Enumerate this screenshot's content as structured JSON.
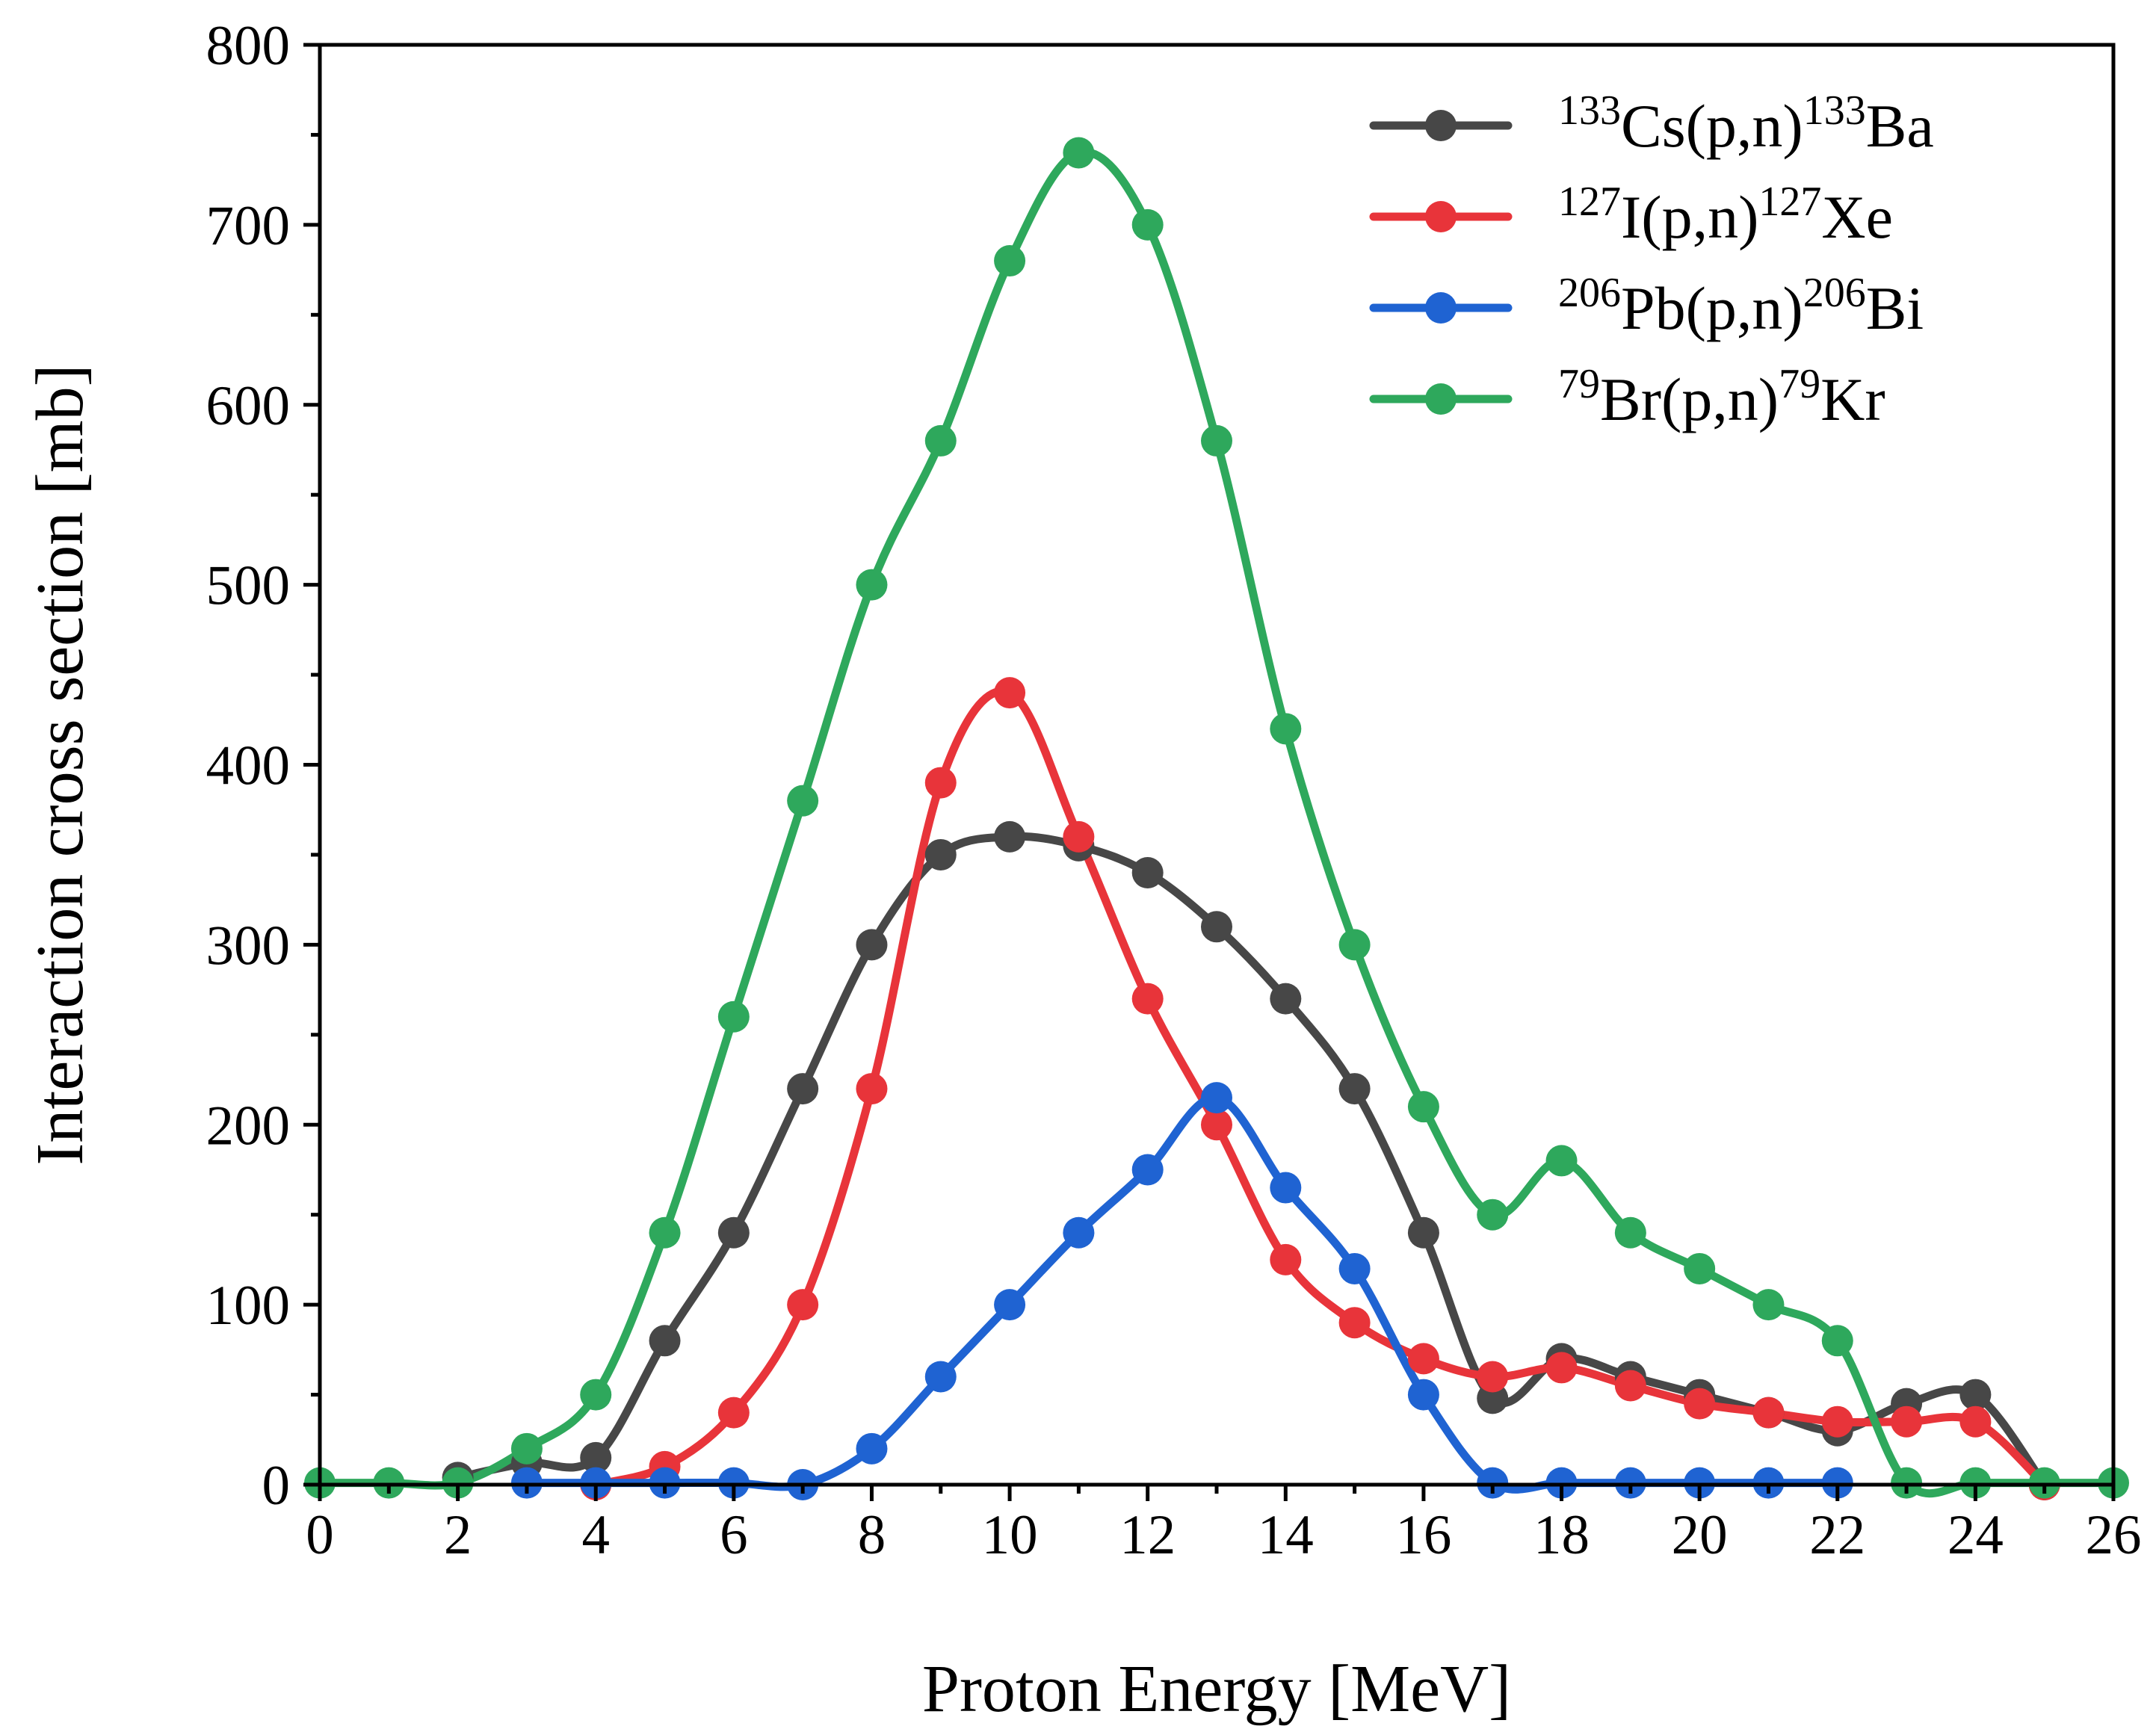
{
  "chart_data": {
    "type": "line",
    "title": "",
    "xlabel": "Proton Energy [MeV]",
    "ylabel": "Interaction cross section [mb]",
    "xlim": [
      0,
      26
    ],
    "ylim": [
      0,
      800
    ],
    "x_ticks": [
      "0",
      "2",
      "4",
      "6",
      "8",
      "10",
      "12",
      "14",
      "16",
      "18",
      "20",
      "22",
      "24",
      "26"
    ],
    "y_ticks": [
      "0",
      "100",
      "200",
      "300",
      "400",
      "500",
      "600",
      "700",
      "800"
    ],
    "grid": false,
    "legend_position": "top-right",
    "series": [
      {
        "name": "133Cs(p,n)133Ba",
        "color": "#474747",
        "label_parts": [
          {
            "sup": "133"
          },
          {
            "text": "Cs(p,n)"
          },
          {
            "sup": "133"
          },
          {
            "text": "Ba"
          }
        ],
        "points": [
          [
            2,
            4
          ],
          [
            3,
            12
          ],
          [
            4,
            15
          ],
          [
            5,
            80
          ],
          [
            6,
            140
          ],
          [
            7,
            220
          ],
          [
            8,
            300
          ],
          [
            9,
            350
          ],
          [
            10,
            360
          ],
          [
            11,
            355
          ],
          [
            12,
            340
          ],
          [
            13,
            310
          ],
          [
            14,
            270
          ],
          [
            15,
            220
          ],
          [
            16,
            140
          ],
          [
            17,
            48
          ],
          [
            18,
            70
          ],
          [
            19,
            60
          ],
          [
            20,
            50
          ],
          [
            21,
            40
          ],
          [
            22,
            30
          ],
          [
            23,
            45
          ],
          [
            24,
            50
          ],
          [
            25,
            0
          ]
        ]
      },
      {
        "name": "127I(p,n)127Xe",
        "color": "#e8343a",
        "label_parts": [
          {
            "sup": "127"
          },
          {
            "text": "I(p,n)"
          },
          {
            "sup": "127"
          },
          {
            "text": "Xe"
          }
        ],
        "points": [
          [
            4,
            0
          ],
          [
            5,
            10
          ],
          [
            6,
            40
          ],
          [
            7,
            100
          ],
          [
            8,
            220
          ],
          [
            9,
            390
          ],
          [
            10,
            440
          ],
          [
            11,
            360
          ],
          [
            12,
            270
          ],
          [
            13,
            200
          ],
          [
            14,
            125
          ],
          [
            15,
            90
          ],
          [
            16,
            70
          ],
          [
            17,
            60
          ],
          [
            18,
            65
          ],
          [
            19,
            55
          ],
          [
            20,
            45
          ],
          [
            21,
            40
          ],
          [
            22,
            35
          ],
          [
            23,
            35
          ],
          [
            24,
            35
          ],
          [
            25,
            0
          ]
        ]
      },
      {
        "name": "206Pb(p,n)206Bi",
        "color": "#1f63d2",
        "label_parts": [
          {
            "sup": "206"
          },
          {
            "text": "Pb(p,n)"
          },
          {
            "sup": "206"
          },
          {
            "text": "Bi"
          }
        ],
        "points": [
          [
            3,
            1
          ],
          [
            4,
            1
          ],
          [
            5,
            1
          ],
          [
            6,
            1
          ],
          [
            7,
            0
          ],
          [
            8,
            20
          ],
          [
            9,
            60
          ],
          [
            10,
            100
          ],
          [
            11,
            140
          ],
          [
            12,
            175
          ],
          [
            13,
            215
          ],
          [
            14,
            165
          ],
          [
            15,
            120
          ],
          [
            16,
            50
          ],
          [
            17,
            1
          ],
          [
            18,
            1
          ],
          [
            19,
            1
          ],
          [
            20,
            1
          ],
          [
            21,
            1
          ],
          [
            22,
            1
          ]
        ]
      },
      {
        "name": "79Br(p,n)79Kr",
        "color": "#2ea85c",
        "label_parts": [
          {
            "sup": "79"
          },
          {
            "text": "Br(p,n)"
          },
          {
            "sup": "79"
          },
          {
            "text": "Kr"
          }
        ],
        "points": [
          [
            0,
            1
          ],
          [
            1,
            1
          ],
          [
            2,
            1
          ],
          [
            3,
            20
          ],
          [
            4,
            50
          ],
          [
            5,
            140
          ],
          [
            6,
            260
          ],
          [
            7,
            380
          ],
          [
            8,
            500
          ],
          [
            9,
            580
          ],
          [
            10,
            680
          ],
          [
            11,
            740
          ],
          [
            12,
            700
          ],
          [
            13,
            580
          ],
          [
            14,
            420
          ],
          [
            15,
            300
          ],
          [
            16,
            210
          ],
          [
            17,
            150
          ],
          [
            18,
            180
          ],
          [
            19,
            140
          ],
          [
            20,
            120
          ],
          [
            21,
            100
          ],
          [
            22,
            80
          ],
          [
            23,
            1
          ],
          [
            24,
            1
          ],
          [
            25,
            1
          ],
          [
            26,
            1
          ]
        ]
      }
    ]
  }
}
